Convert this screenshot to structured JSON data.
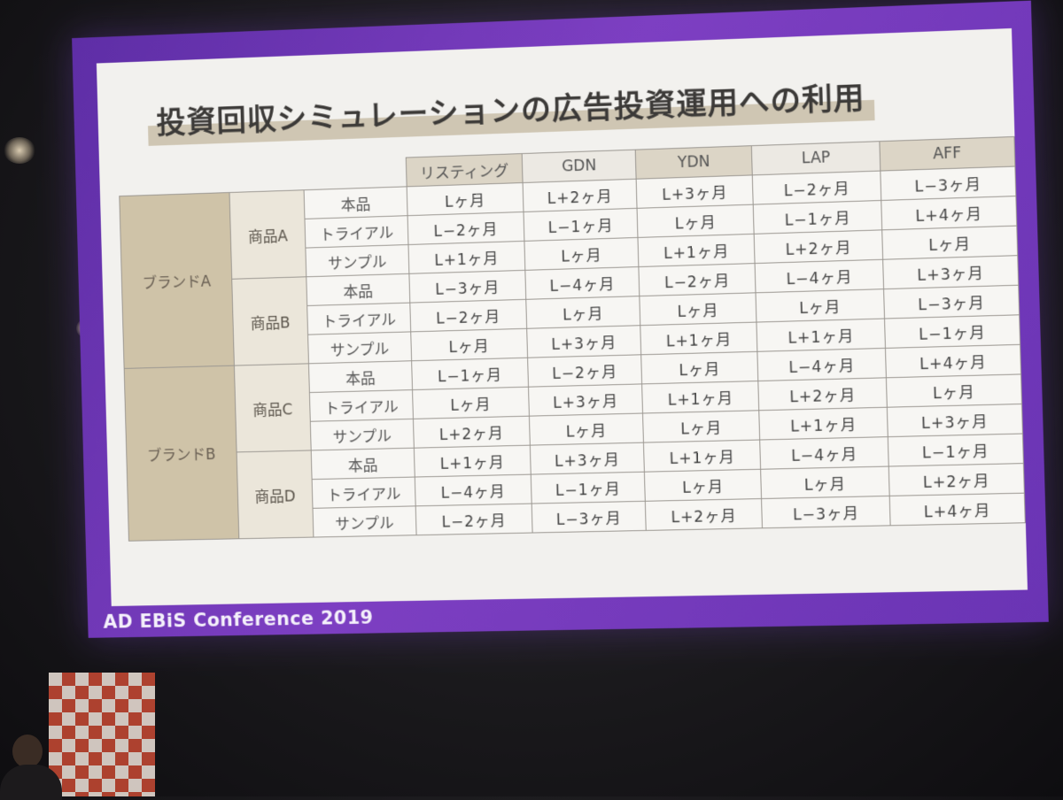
{
  "slide": {
    "title": "投資回収シミュレーションの広告投資運用への利用",
    "footer": "AD EBiS Conference 2019"
  },
  "table": {
    "columns": [
      "リスティング",
      "GDN",
      "YDN",
      "LAP",
      "AFF"
    ],
    "brands": [
      {
        "name": "ブランドA",
        "products": [
          {
            "name": "商品A",
            "rows": [
              {
                "variant": "本品",
                "values": [
                  "Lヶ月",
                  "L+2ヶ月",
                  "L+3ヶ月",
                  "L−2ヶ月",
                  "L−3ヶ月"
                ]
              },
              {
                "variant": "トライアル",
                "values": [
                  "L−2ヶ月",
                  "L−1ヶ月",
                  "Lヶ月",
                  "L−1ヶ月",
                  "L+4ヶ月"
                ]
              },
              {
                "variant": "サンプル",
                "values": [
                  "L+1ヶ月",
                  "Lヶ月",
                  "L+1ヶ月",
                  "L+2ヶ月",
                  "Lヶ月"
                ]
              }
            ]
          },
          {
            "name": "商品B",
            "rows": [
              {
                "variant": "本品",
                "values": [
                  "L−3ヶ月",
                  "L−4ヶ月",
                  "L−2ヶ月",
                  "L−4ヶ月",
                  "L+3ヶ月"
                ]
              },
              {
                "variant": "トライアル",
                "values": [
                  "L−2ヶ月",
                  "Lヶ月",
                  "Lヶ月",
                  "Lヶ月",
                  "L−3ヶ月"
                ]
              },
              {
                "variant": "サンプル",
                "values": [
                  "Lヶ月",
                  "L+3ヶ月",
                  "L+1ヶ月",
                  "L+1ヶ月",
                  "L−1ヶ月"
                ]
              }
            ]
          }
        ]
      },
      {
        "name": "ブランドB",
        "products": [
          {
            "name": "商品C",
            "rows": [
              {
                "variant": "本品",
                "values": [
                  "L−1ヶ月",
                  "L−2ヶ月",
                  "Lヶ月",
                  "L−4ヶ月",
                  "L+4ヶ月"
                ]
              },
              {
                "variant": "トライアル",
                "values": [
                  "Lヶ月",
                  "L+3ヶ月",
                  "L+1ヶ月",
                  "L+2ヶ月",
                  "Lヶ月"
                ]
              },
              {
                "variant": "サンプル",
                "values": [
                  "L+2ヶ月",
                  "Lヶ月",
                  "Lヶ月",
                  "L+1ヶ月",
                  "L+3ヶ月"
                ]
              }
            ]
          },
          {
            "name": "商品D",
            "rows": [
              {
                "variant": "本品",
                "values": [
                  "L+1ヶ月",
                  "L+3ヶ月",
                  "L+1ヶ月",
                  "L−4ヶ月",
                  "L−1ヶ月"
                ]
              },
              {
                "variant": "トライアル",
                "values": [
                  "L−4ヶ月",
                  "L−1ヶ月",
                  "Lヶ月",
                  "Lヶ月",
                  "L+2ヶ月"
                ]
              },
              {
                "variant": "サンプル",
                "values": [
                  "L−2ヶ月",
                  "L−3ヶ月",
                  "L+2ヶ月",
                  "L−3ヶ月",
                  "L+4ヶ月"
                ]
              }
            ]
          }
        ]
      }
    ]
  }
}
